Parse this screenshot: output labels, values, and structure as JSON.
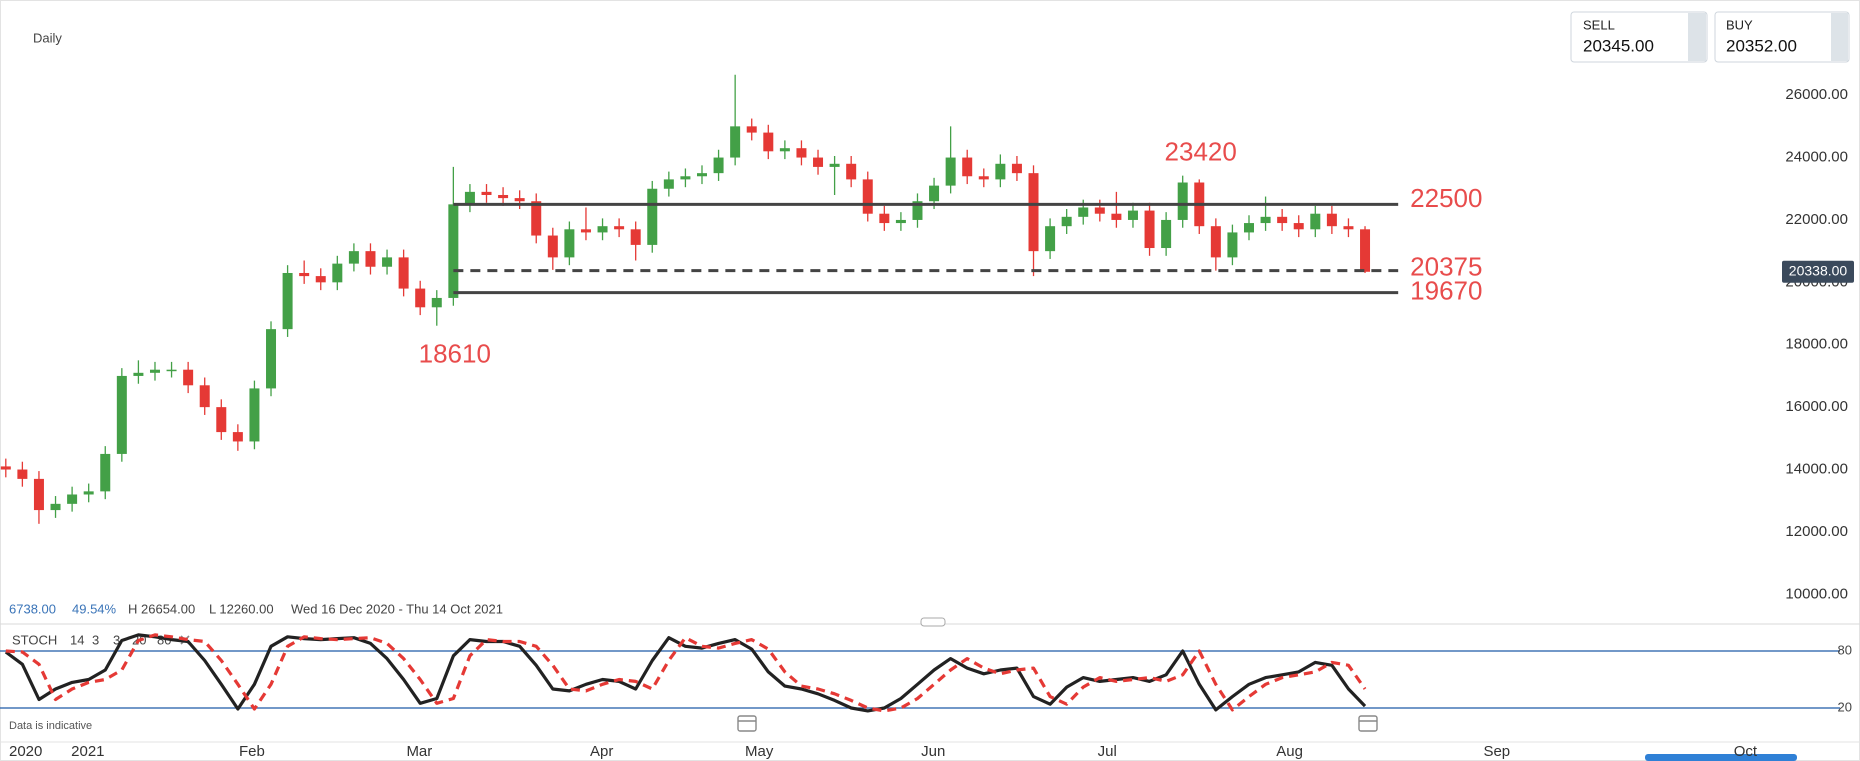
{
  "header": {
    "interval": "Daily",
    "sell_label": "SELL",
    "sell": "20345.00",
    "buy_label": "BUY",
    "buy": "20352.00"
  },
  "info": {
    "change": "6738.00",
    "change_pct": "49.54%",
    "high": "H 26654.00",
    "low": "L 12260.00",
    "range": "Wed 16 Dec 2020 - Thu 14 Oct 2021"
  },
  "footer": {
    "note": "Data is indicative"
  },
  "chart_data": [
    {
      "type": "candlestick",
      "up_color": "#43a047",
      "down_color": "#e53935",
      "x": [
        0,
        2,
        4,
        6,
        8,
        10,
        12,
        14,
        16,
        18,
        20,
        22,
        24,
        26,
        28,
        30,
        32,
        34,
        36,
        38,
        40,
        42,
        44,
        46,
        48,
        50,
        52,
        54,
        56,
        58,
        60,
        62,
        64,
        66,
        68,
        70,
        72,
        74,
        76,
        78,
        80,
        82,
        84,
        86,
        88,
        90,
        92,
        94,
        96,
        98,
        100,
        102,
        104,
        106,
        108,
        110,
        112,
        114,
        116,
        118,
        120,
        122,
        124,
        126,
        128,
        130,
        132,
        134,
        136,
        138,
        140,
        142,
        144,
        146,
        148,
        150,
        152,
        154,
        156,
        158,
        160,
        162,
        164
      ],
      "open": [
        14100,
        14000,
        13700,
        12700,
        12900,
        13200,
        13300,
        14500,
        17000,
        17100,
        17200,
        17200,
        16700,
        16000,
        15200,
        14900,
        16600,
        18500,
        20300,
        20200,
        20000,
        20600,
        21000,
        20500,
        20800,
        19800,
        19200,
        19500,
        22500,
        22900,
        22800,
        22700,
        22600,
        21500,
        20800,
        21700,
        21600,
        21800,
        21700,
        21200,
        23000,
        23300,
        23400,
        23500,
        24000,
        25000,
        24800,
        24200,
        24300,
        24000,
        23700,
        23800,
        23300,
        22200,
        21900,
        22000,
        22600,
        23100,
        24000,
        23400,
        23300,
        23800,
        23500,
        21000,
        21800,
        22100,
        22400,
        22200,
        22000,
        22300,
        21100,
        22000,
        23200,
        21800,
        20800,
        21600,
        21900,
        22100,
        21900,
        21700,
        22200,
        21800,
        21700
      ],
      "high": [
        14350,
        14250,
        13950,
        13150,
        13450,
        13550,
        14750,
        17250,
        17500,
        17450,
        17450,
        17450,
        16950,
        16250,
        15450,
        16850,
        18750,
        20550,
        20700,
        20450,
        20850,
        21250,
        21250,
        21050,
        21050,
        20050,
        19750,
        23700,
        23150,
        23150,
        23050,
        22950,
        22850,
        21750,
        21950,
        22400,
        22050,
        22050,
        21950,
        23250,
        23550,
        23650,
        23750,
        24250,
        26654,
        25250,
        25050,
        24550,
        24550,
        24250,
        24050,
        24050,
        23550,
        22450,
        22250,
        22850,
        23350,
        25000,
        24250,
        23650,
        24100,
        24050,
        23750,
        22050,
        22350,
        22650,
        22650,
        22900,
        22550,
        22550,
        22250,
        23420,
        23300,
        22050,
        21850,
        22150,
        22750,
        22350,
        22150,
        22450,
        22450,
        22050,
        21800
      ],
      "low": [
        13750,
        13450,
        12260,
        12450,
        12650,
        12950,
        13050,
        14250,
        16750,
        16850,
        16950,
        16450,
        15750,
        14950,
        14600,
        14650,
        16350,
        18250,
        19950,
        19750,
        19750,
        20350,
        20250,
        20250,
        19550,
        18950,
        18610,
        19250,
        22250,
        22550,
        22450,
        22350,
        21250,
        20400,
        20550,
        21350,
        21350,
        21450,
        20700,
        20950,
        22750,
        23050,
        23150,
        23250,
        23750,
        24550,
        23950,
        23950,
        23750,
        23450,
        22800,
        23050,
        21950,
        21650,
        21650,
        21750,
        22350,
        22850,
        23150,
        23050,
        23050,
        23250,
        20200,
        20750,
        21550,
        21850,
        21950,
        21750,
        21750,
        20850,
        20850,
        21750,
        21550,
        20375,
        20550,
        21350,
        21650,
        21650,
        21450,
        21450,
        21550,
        21450,
        20300
      ],
      "close": [
        14000,
        13700,
        12700,
        12900,
        13200,
        13300,
        14500,
        17000,
        17100,
        17200,
        17200,
        16700,
        16000,
        15200,
        14900,
        16600,
        18500,
        20300,
        20200,
        20000,
        20600,
        21000,
        20500,
        20800,
        19800,
        19200,
        19500,
        22500,
        22900,
        22800,
        22700,
        22600,
        21500,
        20800,
        21700,
        21600,
        21800,
        21700,
        21200,
        23000,
        23300,
        23400,
        23500,
        24000,
        25000,
        24800,
        24200,
        24300,
        24000,
        23700,
        23800,
        23300,
        22200,
        21900,
        22000,
        22600,
        23100,
        24000,
        23400,
        23300,
        23800,
        23500,
        21000,
        21800,
        22100,
        22400,
        22200,
        22000,
        22300,
        21100,
        22000,
        23200,
        21800,
        20800,
        21600,
        21900,
        22100,
        21900,
        21700,
        22200,
        21800,
        21700,
        20338
      ],
      "xlim": [
        -0.7,
        212.5
      ],
      "ylim": [
        9850,
        29050
      ],
      "yticks": [
        {
          "value": 10000,
          "label": "10000.00"
        },
        {
          "value": 12000,
          "label": "12000.00"
        },
        {
          "value": 14000,
          "label": "14000.00"
        },
        {
          "value": 16000,
          "label": "16000.00"
        },
        {
          "value": 18000,
          "label": "18000.00"
        },
        {
          "value": 20000,
          "label": "20000.00"
        },
        {
          "value": 22000,
          "label": "22000.00"
        },
        {
          "value": 24000,
          "label": "24000.00"
        },
        {
          "value": 26000,
          "label": "26000.00"
        }
      ],
      "current_price": {
        "value": 20338,
        "label": "20338.00"
      },
      "levels": [
        {
          "value": 22500,
          "dashed": false
        },
        {
          "value": 20375,
          "dashed": true
        },
        {
          "value": 19670,
          "dashed": false
        }
      ],
      "level_range": [
        54,
        168
      ],
      "annotations": [
        {
          "x": 142,
          "value": 23420,
          "position": "above"
        },
        {
          "x": 52,
          "value": 18610,
          "position": "below"
        }
      ]
    },
    {
      "type": "line",
      "title": "STOCH",
      "params": [
        14,
        3,
        3,
        20,
        80
      ],
      "x": [
        0,
        2,
        4,
        6,
        8,
        10,
        12,
        14,
        16,
        18,
        20,
        22,
        24,
        26,
        28,
        30,
        32,
        34,
        36,
        38,
        40,
        42,
        44,
        46,
        48,
        50,
        52,
        54,
        56,
        58,
        60,
        62,
        64,
        66,
        68,
        70,
        72,
        74,
        76,
        78,
        80,
        82,
        84,
        86,
        88,
        90,
        92,
        94,
        96,
        98,
        100,
        102,
        104,
        106,
        108,
        110,
        112,
        114,
        116,
        118,
        120,
        122,
        124,
        126,
        128,
        130,
        132,
        134,
        136,
        138,
        140,
        142,
        144,
        146,
        148,
        150,
        152,
        154,
        156,
        158,
        160,
        162,
        164
      ],
      "series": [
        {
          "color": "#222222",
          "dashed": false,
          "values": [
            79,
            66,
            29,
            40,
            47,
            50,
            60,
            91,
            97,
            95,
            92,
            90,
            70,
            45,
            19,
            45,
            85,
            95,
            93,
            92,
            93,
            94,
            88,
            72,
            50,
            25,
            30,
            75,
            92,
            90,
            90,
            85,
            65,
            40,
            38,
            45,
            50,
            48,
            40,
            70,
            94,
            85,
            83,
            88,
            92,
            82,
            58,
            43,
            40,
            35,
            28,
            20,
            17,
            20,
            30,
            45,
            60,
            72,
            62,
            56,
            60,
            62,
            32,
            24,
            42,
            52,
            48,
            50,
            52,
            48,
            55,
            80,
            45,
            18,
            32,
            45,
            52,
            55,
            58,
            68,
            65,
            40,
            22
          ]
        },
        {
          "color": "#e53935",
          "dashed": true,
          "values": [
            80,
            79,
            66,
            29,
            40,
            47,
            50,
            60,
            91,
            97,
            95,
            92,
            90,
            70,
            45,
            19,
            45,
            85,
            95,
            93,
            92,
            93,
            94,
            88,
            72,
            50,
            25,
            30,
            75,
            92,
            90,
            90,
            85,
            65,
            40,
            38,
            45,
            50,
            48,
            40,
            70,
            94,
            85,
            83,
            88,
            92,
            82,
            58,
            43,
            40,
            35,
            28,
            20,
            17,
            20,
            30,
            45,
            60,
            72,
            62,
            56,
            60,
            62,
            32,
            24,
            42,
            52,
            48,
            50,
            52,
            48,
            55,
            80,
            45,
            18,
            32,
            45,
            52,
            55,
            58,
            68,
            65,
            40
          ]
        }
      ],
      "level_color": "#1e5aa8",
      "xlim": [
        -0.7,
        212.5
      ],
      "ylim": [
        0,
        100
      ],
      "yticks": [
        20,
        80
      ],
      "xticks": [
        {
          "value": 2.4,
          "label": "2020"
        },
        {
          "value": 9.9,
          "label": "2021"
        },
        {
          "value": 29.7,
          "label": "Feb"
        },
        {
          "value": 49.9,
          "label": "Mar"
        },
        {
          "value": 71.9,
          "label": "Apr"
        },
        {
          "value": 90.9,
          "label": "May"
        },
        {
          "value": 111.9,
          "label": "Jun"
        },
        {
          "value": 132.9,
          "label": "Jul"
        },
        {
          "value": 154.9,
          "label": "Aug"
        },
        {
          "value": 179.9,
          "label": "Sep"
        },
        {
          "value": 209.9,
          "label": "Oct"
        }
      ]
    }
  ]
}
